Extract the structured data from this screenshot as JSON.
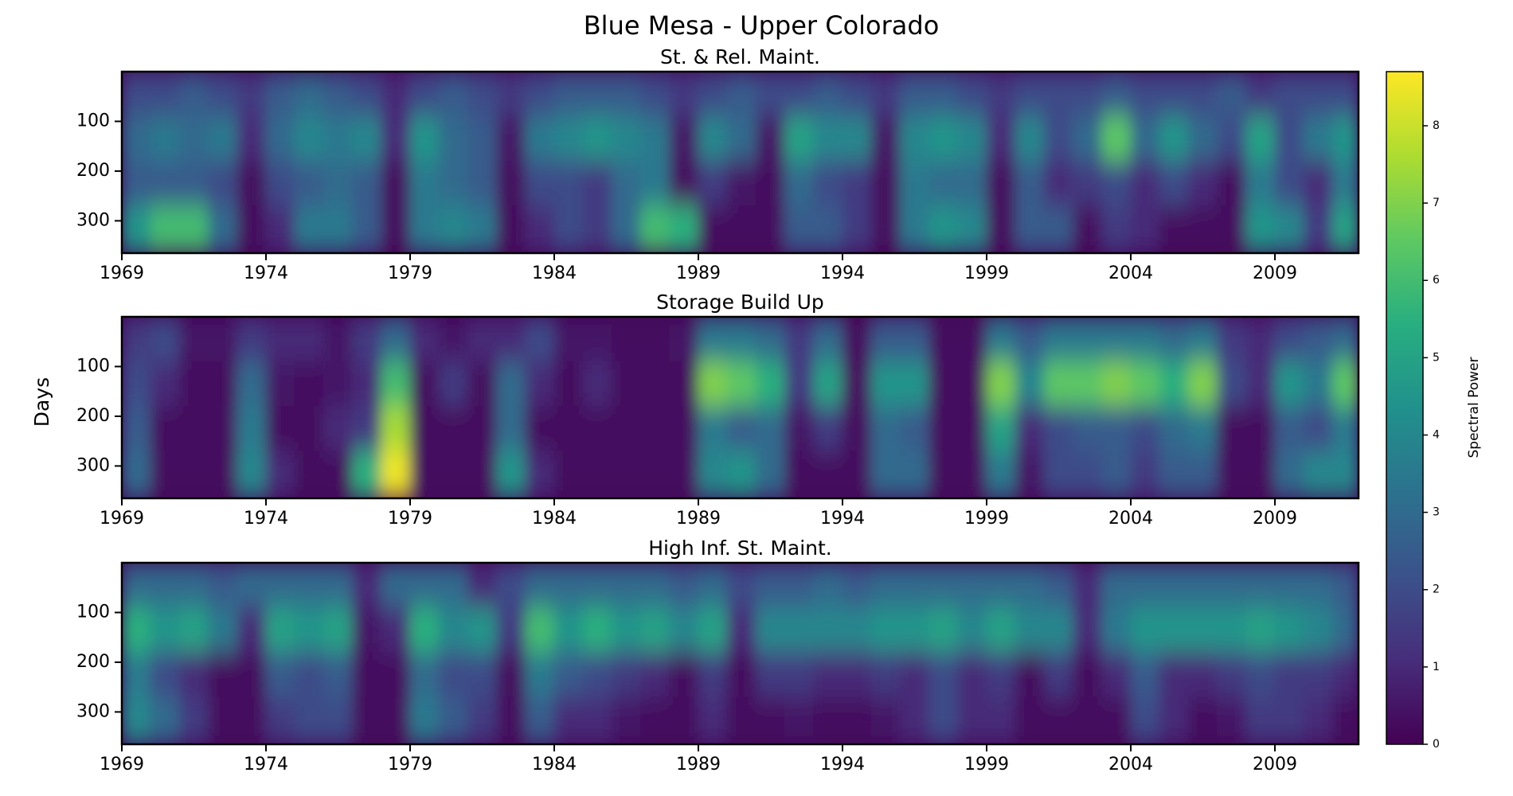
{
  "chart_data": {
    "type": "heatmap",
    "title": "Blue Mesa - Upper Colorado",
    "ylabel": "Days",
    "x": [
      1969,
      1970,
      1971,
      1972,
      1973,
      1974,
      1975,
      1976,
      1977,
      1978,
      1979,
      1980,
      1981,
      1982,
      1983,
      1984,
      1985,
      1986,
      1987,
      1988,
      1989,
      1990,
      1991,
      1992,
      1993,
      1994,
      1995,
      1996,
      1997,
      1998,
      1999,
      2000,
      2001,
      2002,
      2003,
      2004,
      2005,
      2006,
      2007,
      2008,
      2009,
      2010,
      2011
    ],
    "y": [
      45,
      135,
      225,
      315
    ],
    "xlim": [
      1969,
      2011.9
    ],
    "ylim": [
      365,
      0
    ],
    "xticks": [
      1969,
      1974,
      1979,
      1984,
      1989,
      1994,
      1999,
      2004,
      2009
    ],
    "yticks": [
      100,
      200,
      300
    ],
    "colorbar": {
      "label": "Spectral Power",
      "clim": [
        0,
        8.7
      ],
      "ticks": [
        0,
        1,
        2,
        3,
        4,
        5,
        6,
        7,
        8
      ]
    },
    "panels": [
      {
        "title": "St. & Rel. Maint.",
        "z": [
          [
            2,
            2,
            2.5,
            2,
            1.5,
            2.5,
            3,
            2.5,
            2,
            1,
            2,
            2.5,
            2,
            1.5,
            2,
            2.5,
            2.5,
            2.5,
            2,
            1.5,
            2,
            2.5,
            2,
            2,
            2.5,
            2,
            1.5,
            2.5,
            2.5,
            2,
            1.5,
            2,
            2,
            2,
            2.5,
            2,
            2,
            2,
            2.5,
            1.5,
            2,
            2,
            2
          ],
          [
            3,
            3.5,
            3,
            3.5,
            1,
            3,
            4,
            3.5,
            4,
            1,
            4.5,
            3,
            2.5,
            0.5,
            3.5,
            4,
            4.5,
            4,
            3.5,
            0.5,
            4,
            3,
            0.5,
            5,
            4,
            4,
            0.5,
            4,
            4.5,
            4,
            1,
            4,
            2,
            3,
            6.5,
            3,
            4.5,
            3,
            2,
            5,
            2,
            3.5,
            4.5
          ],
          [
            2.5,
            2.5,
            2.5,
            2,
            0.3,
            2,
            2.5,
            3,
            2.5,
            0.3,
            3.5,
            3,
            2.5,
            0.3,
            2,
            2,
            1.5,
            3,
            3.5,
            0.3,
            1.5,
            0.5,
            0.3,
            3,
            2,
            1.5,
            0.3,
            3.5,
            3,
            3,
            0.3,
            2.5,
            1,
            1.5,
            2,
            1,
            2,
            1,
            0.3,
            3.5,
            2,
            1,
            3.5
          ],
          [
            4.5,
            6,
            6,
            3,
            0.3,
            1,
            3.5,
            3.5,
            2.5,
            0.3,
            3.5,
            4,
            3.5,
            0.3,
            1,
            2,
            1.5,
            3,
            6,
            5.5,
            0.3,
            0.3,
            0.3,
            2.5,
            2.5,
            1.5,
            0.3,
            3.5,
            4.5,
            4,
            0.3,
            2.5,
            2.5,
            0.3,
            1.5,
            1,
            0.3,
            0.3,
            0.3,
            4.5,
            4,
            1.5,
            5
          ]
        ]
      },
      {
        "title": "Storage Build Up",
        "z": [
          [
            1.5,
            2,
            0.5,
            0.5,
            1.5,
            1,
            1,
            0.5,
            1.5,
            3,
            1,
            0.5,
            1,
            1,
            2,
            0.5,
            0.5,
            0.3,
            0.3,
            0.5,
            3.5,
            3.5,
            3,
            1.5,
            3,
            0.3,
            2.5,
            2.5,
            0.3,
            0.3,
            3.5,
            2.5,
            3.5,
            3.5,
            3.5,
            3.5,
            3,
            3.5,
            1.5,
            1,
            2,
            2.5,
            3
          ],
          [
            2,
            1,
            0.3,
            0.3,
            3,
            0.5,
            0.3,
            0.5,
            1,
            6,
            0.3,
            1.5,
            0.3,
            3,
            1,
            0.3,
            1,
            0.3,
            0.3,
            0.3,
            7,
            6.5,
            5.5,
            1.5,
            5,
            0.3,
            4.5,
            4.5,
            0.3,
            0.3,
            7,
            4,
            6.5,
            6.5,
            7,
            6.5,
            5.5,
            7,
            2,
            1,
            4.5,
            3.5,
            6.5
          ],
          [
            2.5,
            0.3,
            0.3,
            0.3,
            3.5,
            0.3,
            0.3,
            1,
            1.5,
            7.5,
            0.3,
            0.3,
            0.3,
            3,
            0.3,
            0.3,
            0.3,
            0.3,
            0.3,
            0.3,
            3.5,
            2.5,
            3,
            0.5,
            1.5,
            0.3,
            3,
            2.5,
            0.3,
            0.3,
            5,
            1,
            2,
            2.5,
            2.5,
            2,
            3,
            3.5,
            0.3,
            0.3,
            2.5,
            2,
            3.5
          ],
          [
            3,
            0.3,
            0.3,
            0.3,
            4,
            1,
            0.3,
            0.3,
            5.5,
            8.5,
            0.3,
            0.3,
            0.3,
            4.5,
            1,
            0.3,
            0.3,
            0.3,
            0.3,
            0.3,
            4,
            4.5,
            3,
            0.3,
            0.3,
            0.3,
            3,
            3,
            0.3,
            0.3,
            3.5,
            0.5,
            2,
            2,
            2.5,
            1.5,
            2.5,
            2.5,
            0.3,
            0.3,
            3,
            4,
            4
          ]
        ]
      },
      {
        "title": "High Inf. St. Maint.",
        "z": [
          [
            3,
            3,
            3,
            2.5,
            3,
            3,
            3,
            3,
            1,
            3,
            3,
            3,
            1,
            2,
            3,
            3,
            3,
            3,
            3,
            2.5,
            3,
            2,
            2.5,
            2.5,
            3,
            2.5,
            3,
            3,
            3,
            3,
            3,
            3,
            2.5,
            1,
            3,
            3,
            3,
            3,
            3,
            3,
            3,
            3,
            2.5
          ],
          [
            5.5,
            4.5,
            5,
            3.5,
            1,
            5,
            4.5,
            5,
            0.5,
            1,
            5.5,
            4,
            4.5,
            1.5,
            6,
            4.5,
            5.5,
            4.5,
            5,
            4,
            5,
            1,
            4,
            4,
            4,
            4,
            4.5,
            4.5,
            5,
            4,
            5,
            4,
            4,
            1,
            3.5,
            4.5,
            4.5,
            4.5,
            4.5,
            5,
            4.5,
            4,
            3
          ],
          [
            3.5,
            2,
            1,
            0.3,
            0.3,
            2.5,
            2,
            2.5,
            0.3,
            0.3,
            3,
            2,
            2,
            0.3,
            3.5,
            2.5,
            2,
            1.5,
            1,
            0.3,
            1.5,
            0.3,
            1.5,
            1.5,
            1,
            1,
            1.5,
            1,
            2,
            1,
            1.5,
            0.3,
            1.5,
            0.3,
            1,
            2.5,
            1,
            1,
            1.5,
            2,
            1.5,
            1.5,
            1
          ],
          [
            4,
            3,
            1.5,
            0.3,
            0.3,
            1.5,
            2,
            2,
            0.3,
            0.3,
            3.5,
            2.5,
            1.5,
            0.3,
            2.5,
            1,
            1,
            0.5,
            0.3,
            0.3,
            1,
            0.3,
            0.3,
            0.5,
            0.3,
            0.3,
            0.5,
            1,
            2,
            1,
            1,
            0.3,
            0.3,
            0.3,
            0.3,
            2,
            1,
            0.3,
            0.5,
            1.5,
            1.5,
            1,
            0.3
          ]
        ]
      }
    ]
  }
}
